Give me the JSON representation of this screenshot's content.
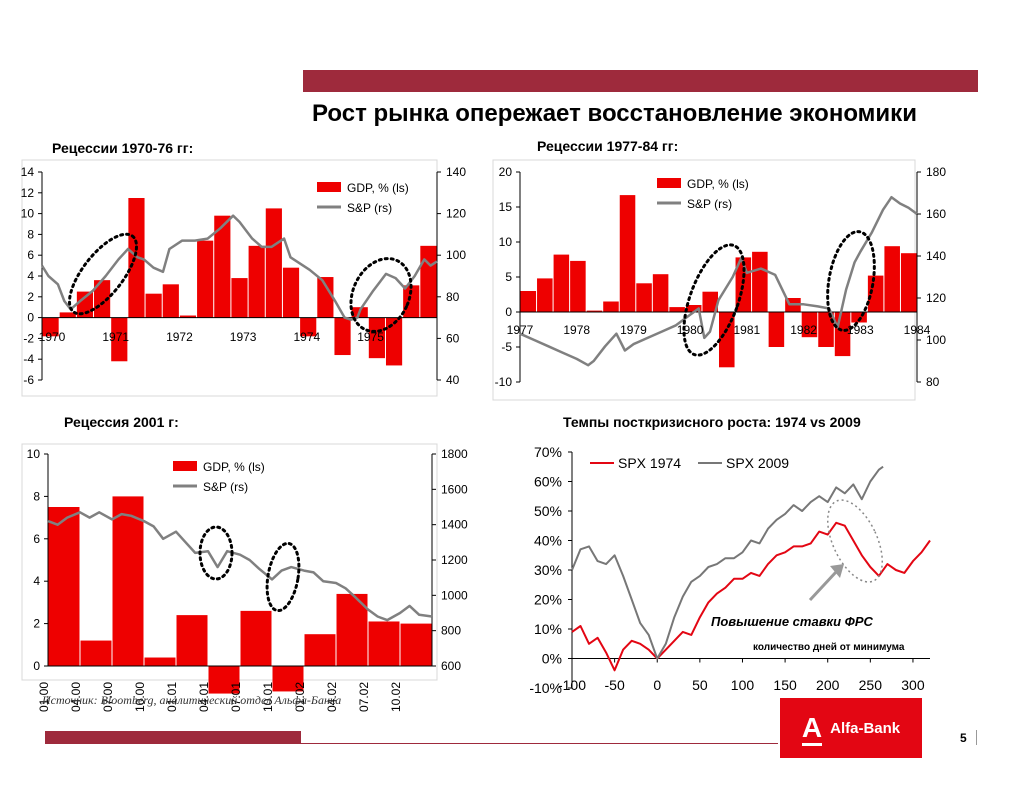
{
  "header": {
    "title": "Рост рынка опережает восстановление экономики"
  },
  "footer": {
    "source": "Источник: Bloomberg, аналитический отдел Альфа-Банка",
    "logo_text": "Alfa-Bank",
    "logo_mark": "А",
    "page_number": "5"
  },
  "chart_data": [
    {
      "id": "c1",
      "type": "bar+line",
      "title": "Рецессии 1970-76 гг:",
      "y_left": {
        "min": -6,
        "max": 14,
        "ticks": [
          "-6",
          "-4",
          "-2",
          "0",
          "2",
          "4",
          "6",
          "8",
          "10",
          "12",
          "14"
        ]
      },
      "y_right": {
        "min": 40,
        "max": 140,
        "ticks": [
          "40",
          "60",
          "80",
          "100",
          "120",
          "140"
        ]
      },
      "x_labels": [
        "1970",
        "1971",
        "1972",
        "1973",
        "1974",
        "1975"
      ],
      "x_domain": [
        1970,
        1976.2
      ],
      "legend": [
        {
          "name": "GDP, % (ls)",
          "type": "bar"
        },
        {
          "name": "S&P (rs)",
          "type": "line"
        }
      ],
      "gdp_bars": [
        -1.8,
        0.5,
        2.5,
        3.6,
        -4.2,
        11.5,
        2.3,
        3.2,
        0.2,
        7.4,
        9.8,
        3.8,
        6.9,
        10.5,
        4.8,
        -1.8,
        3.9,
        -3.6,
        1.0,
        -3.9,
        -4.6,
        3.1,
        6.9
      ],
      "sp_series": [
        [
          1970,
          95
        ],
        [
          1970.1,
          90
        ],
        [
          1970.25,
          86
        ],
        [
          1970.35,
          78
        ],
        [
          1970.45,
          74
        ],
        [
          1970.6,
          78
        ],
        [
          1970.8,
          83
        ],
        [
          1971,
          90
        ],
        [
          1971.2,
          98
        ],
        [
          1971.35,
          103
        ],
        [
          1971.5,
          99
        ],
        [
          1971.6,
          98
        ],
        [
          1971.75,
          94
        ],
        [
          1971.9,
          92
        ],
        [
          1972,
          103
        ],
        [
          1972.2,
          107
        ],
        [
          1972.4,
          107
        ],
        [
          1972.6,
          108
        ],
        [
          1972.8,
          113
        ],
        [
          1973,
          119
        ],
        [
          1973.1,
          116
        ],
        [
          1973.3,
          108
        ],
        [
          1973.45,
          104
        ],
        [
          1973.6,
          104
        ],
        [
          1973.8,
          108
        ],
        [
          1973.9,
          99
        ],
        [
          1974,
          97
        ],
        [
          1974.2,
          93
        ],
        [
          1974.4,
          88
        ],
        [
          1974.6,
          78
        ],
        [
          1974.75,
          70
        ],
        [
          1974.85,
          69
        ],
        [
          1974.95,
          70
        ],
        [
          1975,
          74
        ],
        [
          1975.2,
          83
        ],
        [
          1975.4,
          91
        ],
        [
          1975.55,
          89
        ],
        [
          1975.7,
          84
        ],
        [
          1975.85,
          90
        ],
        [
          1976,
          98
        ],
        [
          1976.1,
          95
        ],
        [
          1976.2,
          97
        ]
      ],
      "annotations": "dotted ellipses around 1970-71 and 1975 troughs"
    },
    {
      "id": "c2",
      "type": "bar+line",
      "title": "Рецессии 1977-84 гг:",
      "y_left": {
        "min": -10,
        "max": 20,
        "ticks": [
          "-10",
          "-5",
          "0",
          "5",
          "10",
          "15",
          "20"
        ]
      },
      "y_right": {
        "min": 80,
        "max": 180,
        "ticks": [
          "80",
          "100",
          "120",
          "140",
          "160",
          "180"
        ]
      },
      "x_labels": [
        "1977",
        "1978",
        "1979",
        "1980",
        "1981",
        "1982",
        "1983",
        "1984"
      ],
      "x_domain": [
        1977,
        1984
      ],
      "legend": [
        {
          "name": "GDP, % (ls)",
          "type": "bar"
        },
        {
          "name": "S&P (rs)",
          "type": "line"
        }
      ],
      "gdp_bars": [
        3.0,
        4.8,
        8.2,
        7.3,
        0.2,
        1.5,
        16.7,
        4.1,
        5.4,
        0.7,
        1.0,
        2.9,
        -7.9,
        7.8,
        8.6,
        -5.0,
        2.0,
        -3.6,
        -5.0,
        -6.3,
        -1.5,
        5.2,
        9.4,
        8.4
      ],
      "sp_series": [
        [
          1977,
          103
        ],
        [
          1977.25,
          100
        ],
        [
          1977.5,
          97
        ],
        [
          1977.75,
          94
        ],
        [
          1978,
          91
        ],
        [
          1978.2,
          88
        ],
        [
          1978.3,
          90
        ],
        [
          1978.5,
          97
        ],
        [
          1978.7,
          103
        ],
        [
          1978.85,
          95
        ],
        [
          1979,
          98
        ],
        [
          1979.25,
          101
        ],
        [
          1979.5,
          104
        ],
        [
          1979.75,
          107
        ],
        [
          1980,
          112
        ],
        [
          1980.15,
          115
        ],
        [
          1980.25,
          101
        ],
        [
          1980.35,
          104
        ],
        [
          1980.5,
          119
        ],
        [
          1980.75,
          130
        ],
        [
          1980.9,
          139
        ],
        [
          1981,
          132
        ],
        [
          1981.25,
          134
        ],
        [
          1981.5,
          131
        ],
        [
          1981.75,
          117
        ],
        [
          1982,
          117
        ],
        [
          1982.25,
          116
        ],
        [
          1982.45,
          115
        ],
        [
          1982.6,
          106
        ],
        [
          1982.75,
          124
        ],
        [
          1982.9,
          137
        ],
        [
          1983,
          142
        ],
        [
          1983.2,
          151
        ],
        [
          1983.4,
          162
        ],
        [
          1983.55,
          168
        ],
        [
          1983.7,
          165
        ],
        [
          1983.85,
          163
        ],
        [
          1984,
          160
        ]
      ],
      "annotations": "dotted ellipses around 1980 and 1982 troughs"
    },
    {
      "id": "c3",
      "type": "bar+line",
      "title": "Рецессия 2001 г:",
      "y_left": {
        "min": 0,
        "max": 10,
        "ticks": [
          "0",
          "2",
          "4",
          "6",
          "8",
          "10"
        ]
      },
      "y_right": {
        "min": 600,
        "max": 1800,
        "ticks": [
          "600",
          "800",
          "1000",
          "1200",
          "1400",
          "1600",
          "1800"
        ]
      },
      "x_labels": [
        "01.00",
        "04.00",
        "07.00",
        "10.00",
        "01.01",
        "04.01",
        "07.01",
        "10.01",
        "01.02",
        "04.02",
        "07.02",
        "10.02"
      ],
      "x_domain": [
        0,
        12
      ],
      "legend": [
        {
          "name": "GDP, % (ls)",
          "type": "bar"
        },
        {
          "name": "S&P (rs)",
          "type": "line"
        }
      ],
      "gdp_bars": [
        7.5,
        1.2,
        8.0,
        0.4,
        2.4,
        -1.3,
        2.6,
        -1.2,
        1.5,
        3.4,
        2.1,
        2.0
      ],
      "sp_series": [
        [
          0,
          1420
        ],
        [
          0.3,
          1400
        ],
        [
          0.6,
          1440
        ],
        [
          1,
          1470
        ],
        [
          1.3,
          1440
        ],
        [
          1.6,
          1470
        ],
        [
          2,
          1430
        ],
        [
          2.3,
          1460
        ],
        [
          2.6,
          1450
        ],
        [
          3,
          1420
        ],
        [
          3.3,
          1390
        ],
        [
          3.6,
          1320
        ],
        [
          4,
          1360
        ],
        [
          4.3,
          1300
        ],
        [
          4.6,
          1240
        ],
        [
          5,
          1250
        ],
        [
          5.3,
          1160
        ],
        [
          5.6,
          1250
        ],
        [
          6,
          1230
        ],
        [
          6.3,
          1200
        ],
        [
          6.6,
          1150
        ],
        [
          7,
          1090
        ],
        [
          7.3,
          1140
        ],
        [
          7.6,
          1160
        ],
        [
          8,
          1140
        ],
        [
          8.3,
          1130
        ],
        [
          8.6,
          1080
        ],
        [
          9,
          1070
        ],
        [
          9.3,
          1040
        ],
        [
          9.6,
          990
        ],
        [
          10,
          920
        ],
        [
          10.3,
          880
        ],
        [
          10.6,
          860
        ],
        [
          11,
          900
        ],
        [
          11.3,
          940
        ],
        [
          11.6,
          890
        ],
        [
          12,
          880
        ]
      ],
      "annotations": "dotted ellipses around mid-2001 and late-2001 lows"
    },
    {
      "id": "c4",
      "type": "line",
      "title": "Темпы посткризисного роста: 1974 vs 2009",
      "x_range": [
        -100,
        320
      ],
      "x_ticks": [
        "-100",
        "-50",
        "0",
        "50",
        "100",
        "150",
        "200",
        "250",
        "300"
      ],
      "y_range": [
        -0.1,
        0.7
      ],
      "y_ticks": [
        "-10%",
        "0%",
        "10%",
        "20%",
        "30%",
        "40%",
        "50%",
        "60%",
        "70%"
      ],
      "xlabel": "количество дней от минимума",
      "legend": [
        {
          "name": "SPX 1974",
          "color": "#e30613"
        },
        {
          "name": "SPX 2009",
          "color": "#777777"
        }
      ],
      "annotation_text": "Повышение ставки ФРС",
      "series": [
        {
          "name": "SPX 1974",
          "points": [
            [
              -100,
              0.09
            ],
            [
              -90,
              0.11
            ],
            [
              -80,
              0.05
            ],
            [
              -70,
              0.07
            ],
            [
              -60,
              0.02
            ],
            [
              -50,
              -0.04
            ],
            [
              -40,
              0.03
            ],
            [
              -30,
              0.06
            ],
            [
              -20,
              0.05
            ],
            [
              -10,
              0.03
            ],
            [
              0,
              0.0
            ],
            [
              10,
              0.03
            ],
            [
              20,
              0.06
            ],
            [
              30,
              0.09
            ],
            [
              40,
              0.08
            ],
            [
              50,
              0.14
            ],
            [
              60,
              0.19
            ],
            [
              70,
              0.22
            ],
            [
              80,
              0.24
            ],
            [
              90,
              0.27
            ],
            [
              100,
              0.27
            ],
            [
              110,
              0.29
            ],
            [
              120,
              0.28
            ],
            [
              130,
              0.32
            ],
            [
              140,
              0.35
            ],
            [
              150,
              0.36
            ],
            [
              160,
              0.38
            ],
            [
              170,
              0.38
            ],
            [
              180,
              0.39
            ],
            [
              190,
              0.43
            ],
            [
              200,
              0.42
            ],
            [
              210,
              0.46
            ],
            [
              220,
              0.45
            ],
            [
              230,
              0.4
            ],
            [
              240,
              0.35
            ],
            [
              250,
              0.31
            ],
            [
              260,
              0.28
            ],
            [
              270,
              0.32
            ],
            [
              280,
              0.3
            ],
            [
              290,
              0.29
            ],
            [
              300,
              0.33
            ],
            [
              310,
              0.36
            ],
            [
              320,
              0.4
            ]
          ]
        },
        {
          "name": "SPX 2009",
          "points": [
            [
              -100,
              0.3
            ],
            [
              -90,
              0.37
            ],
            [
              -80,
              0.38
            ],
            [
              -70,
              0.33
            ],
            [
              -60,
              0.32
            ],
            [
              -50,
              0.35
            ],
            [
              -40,
              0.28
            ],
            [
              -30,
              0.2
            ],
            [
              -20,
              0.12
            ],
            [
              -10,
              0.08
            ],
            [
              0,
              0.0
            ],
            [
              10,
              0.05
            ],
            [
              20,
              0.14
            ],
            [
              30,
              0.21
            ],
            [
              40,
              0.26
            ],
            [
              50,
              0.28
            ],
            [
              60,
              0.31
            ],
            [
              70,
              0.32
            ],
            [
              80,
              0.34
            ],
            [
              90,
              0.34
            ],
            [
              100,
              0.36
            ],
            [
              110,
              0.4
            ],
            [
              120,
              0.39
            ],
            [
              130,
              0.44
            ],
            [
              140,
              0.47
            ],
            [
              150,
              0.49
            ],
            [
              160,
              0.52
            ],
            [
              170,
              0.5
            ],
            [
              180,
              0.53
            ],
            [
              190,
              0.55
            ],
            [
              200,
              0.53
            ],
            [
              210,
              0.58
            ],
            [
              220,
              0.56
            ],
            [
              230,
              0.59
            ],
            [
              240,
              0.54
            ],
            [
              250,
              0.6
            ],
            [
              260,
              0.64
            ],
            [
              265,
              0.65
            ]
          ]
        }
      ]
    }
  ]
}
